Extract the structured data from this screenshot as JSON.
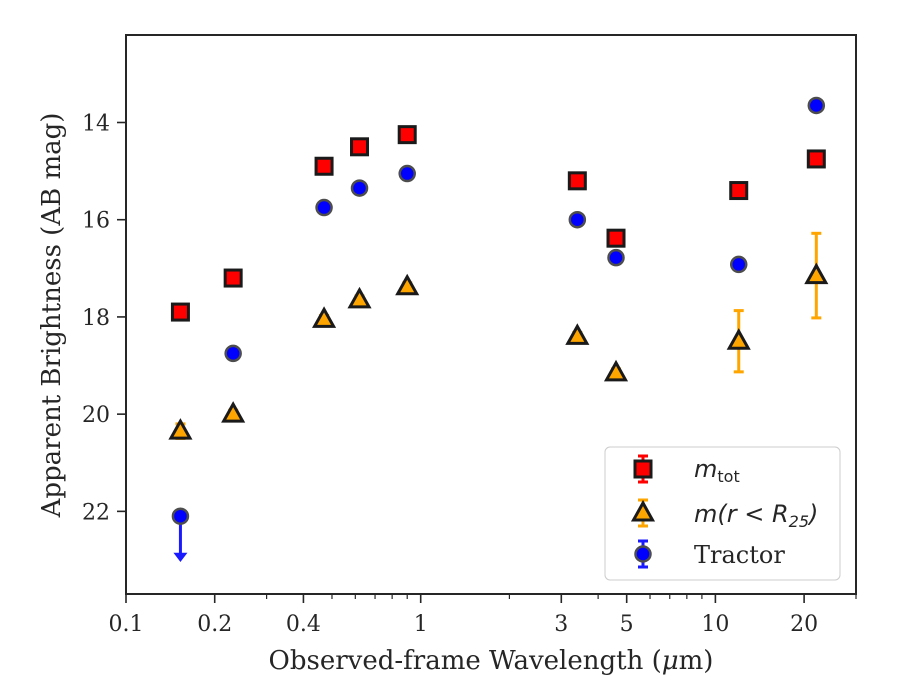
{
  "chart_data": {
    "type": "scatter",
    "xlabel_pre": "Observed-frame Wavelength (",
    "xlabel_mu": "μ",
    "xlabel_post": "m)",
    "ylabel": "Apparent Brightness (AB mag)",
    "xscale": "log",
    "xlim": [
      0.1,
      30
    ],
    "ylim": [
      23.7,
      12.2
    ],
    "y_inverted": true,
    "grid": false,
    "legend_position": "lower-right",
    "x_ticks": [
      {
        "value": 0.1,
        "label": "0.1"
      },
      {
        "value": 0.2,
        "label": "0.2"
      },
      {
        "value": 0.4,
        "label": "0.4"
      },
      {
        "value": 1,
        "label": "1"
      },
      {
        "value": 3,
        "label": "3"
      },
      {
        "value": 5,
        "label": "5"
      },
      {
        "value": 10,
        "label": "10"
      },
      {
        "value": 20,
        "label": "20"
      }
    ],
    "y_ticks": [
      {
        "value": 14,
        "label": "14"
      },
      {
        "value": 16,
        "label": "16"
      },
      {
        "value": 18,
        "label": "18"
      },
      {
        "value": 20,
        "label": "20"
      },
      {
        "value": 22,
        "label": "22"
      }
    ],
    "series": [
      {
        "name": "m_tot",
        "legend_main": "m",
        "legend_sub": "tot",
        "marker": "square",
        "color": "#ff0000",
        "errcolor": "#ff0000",
        "points": [
          {
            "x": 0.153,
            "y": 17.9,
            "err": 0.08
          },
          {
            "x": 0.231,
            "y": 17.2,
            "err": 0.08
          },
          {
            "x": 0.47,
            "y": 14.9,
            "err": 0.08
          },
          {
            "x": 0.62,
            "y": 14.5,
            "err": 0.08
          },
          {
            "x": 0.9,
            "y": 14.25,
            "err": 0.08
          },
          {
            "x": 3.4,
            "y": 15.2,
            "err": 0.08
          },
          {
            "x": 4.6,
            "y": 16.38,
            "err": 0.08
          },
          {
            "x": 12.0,
            "y": 15.4,
            "err": 0.08
          },
          {
            "x": 22.0,
            "y": 14.75,
            "err": 0.08
          }
        ]
      },
      {
        "name": "m(r < R25)",
        "legend_pre": "m(r < R",
        "legend_sub": "25",
        "legend_post": ")",
        "marker": "triangle",
        "color": "#ffa500",
        "errcolor": "#ffa500",
        "points": [
          {
            "x": 0.153,
            "y": 20.35,
            "err": 0.15
          },
          {
            "x": 0.231,
            "y": 20.0,
            "err": 0.08
          },
          {
            "x": 0.47,
            "y": 18.05,
            "err": 0.08
          },
          {
            "x": 0.62,
            "y": 17.65,
            "err": 0.08
          },
          {
            "x": 0.9,
            "y": 17.38,
            "err": 0.08
          },
          {
            "x": 3.4,
            "y": 18.4,
            "err": 0.08
          },
          {
            "x": 4.6,
            "y": 19.15,
            "err": 0.08
          },
          {
            "x": 12.0,
            "y": 18.5,
            "err": 0.63
          },
          {
            "x": 22.0,
            "y": 17.15,
            "err": 0.87
          }
        ]
      },
      {
        "name": "Tractor",
        "legend_pre": "Tractor",
        "marker": "circle",
        "color": "#0000ff",
        "errcolor": "#1a1aff",
        "points": [
          {
            "x": 0.153,
            "y": 22.1,
            "err": 0.05,
            "upper_limit": true
          },
          {
            "x": 0.231,
            "y": 18.75,
            "err": 0.05
          },
          {
            "x": 0.47,
            "y": 15.75,
            "err": 0.05
          },
          {
            "x": 0.62,
            "y": 15.35,
            "err": 0.05
          },
          {
            "x": 0.9,
            "y": 15.05,
            "err": 0.05
          },
          {
            "x": 3.4,
            "y": 16.0,
            "err": 0.05
          },
          {
            "x": 4.6,
            "y": 16.78,
            "err": 0.05
          },
          {
            "x": 12.0,
            "y": 16.92,
            "err": 0.05
          },
          {
            "x": 22.0,
            "y": 13.65,
            "err": 0.05
          }
        ]
      }
    ]
  }
}
